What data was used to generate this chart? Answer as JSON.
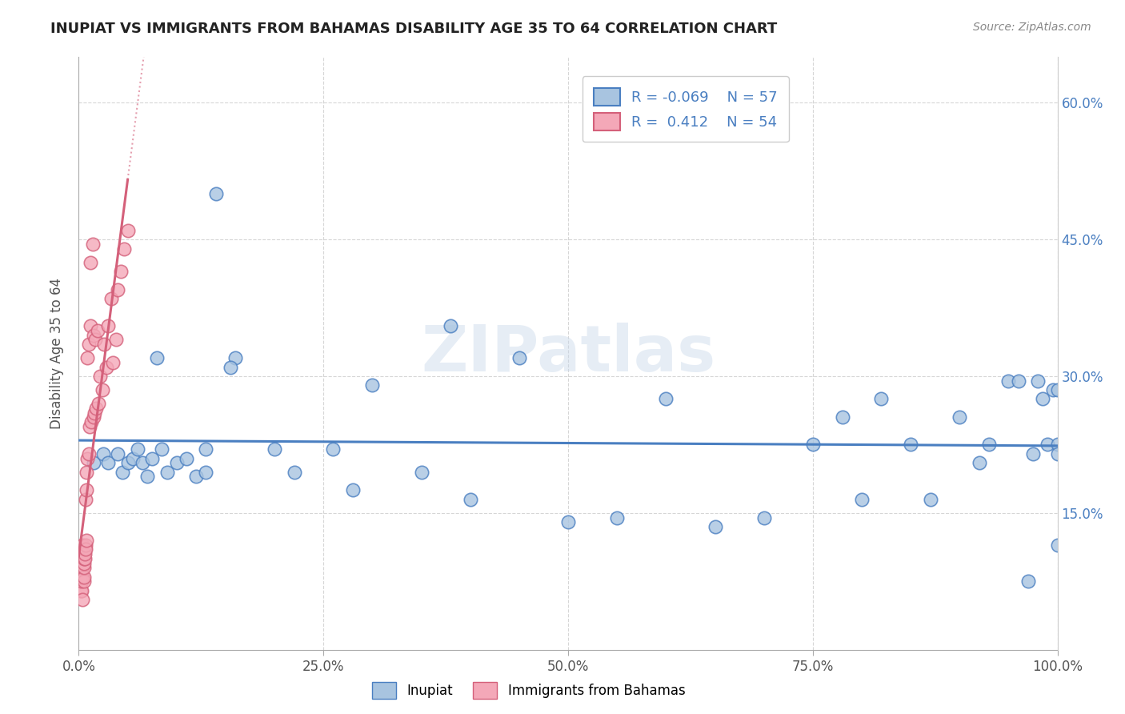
{
  "title": "INUPIAT VS IMMIGRANTS FROM BAHAMAS DISABILITY AGE 35 TO 64 CORRELATION CHART",
  "source": "Source: ZipAtlas.com",
  "ylabel": "Disability Age 35 to 64",
  "watermark": "ZIPatlas",
  "r_inupiat": -0.069,
  "n_inupiat": 57,
  "r_bahamas": 0.412,
  "n_bahamas": 54,
  "xlim": [
    0.0,
    1.0
  ],
  "ylim": [
    0.0,
    0.65
  ],
  "xticks": [
    0.0,
    0.25,
    0.5,
    0.75,
    1.0
  ],
  "xtick_labels": [
    "0.0%",
    "25.0%",
    "50.0%",
    "75.0%",
    "100.0%"
  ],
  "yticks": [
    0.15,
    0.3,
    0.45,
    0.6
  ],
  "ytick_labels": [
    "15.0%",
    "30.0%",
    "45.0%",
    "60.0%"
  ],
  "color_inupiat": "#a8c4e0",
  "color_bahamas": "#f4a8b8",
  "line_color_inupiat": "#4a7fc1",
  "line_color_bahamas": "#d4607a",
  "background_color": "#ffffff",
  "inupiat_x": [
    0.015,
    0.025,
    0.03,
    0.04,
    0.045,
    0.05,
    0.055,
    0.06,
    0.065,
    0.07,
    0.075,
    0.08,
    0.085,
    0.09,
    0.1,
    0.11,
    0.12,
    0.13,
    0.14,
    0.13,
    0.16,
    0.155,
    0.2,
    0.22,
    0.26,
    0.28,
    0.3,
    0.35,
    0.38,
    0.4,
    0.45,
    0.5,
    0.55,
    0.6,
    0.65,
    0.7,
    0.75,
    0.78,
    0.8,
    0.82,
    0.85,
    0.87,
    0.9,
    0.92,
    0.93,
    0.95,
    0.96,
    0.97,
    0.975,
    0.98,
    0.985,
    0.99,
    0.995,
    1.0,
    1.0,
    1.0,
    1.0
  ],
  "inupiat_y": [
    0.205,
    0.215,
    0.205,
    0.215,
    0.195,
    0.205,
    0.21,
    0.22,
    0.205,
    0.19,
    0.21,
    0.32,
    0.22,
    0.195,
    0.205,
    0.21,
    0.19,
    0.195,
    0.5,
    0.22,
    0.32,
    0.31,
    0.22,
    0.195,
    0.22,
    0.175,
    0.29,
    0.195,
    0.355,
    0.165,
    0.32,
    0.14,
    0.145,
    0.275,
    0.135,
    0.145,
    0.225,
    0.255,
    0.165,
    0.275,
    0.225,
    0.165,
    0.255,
    0.205,
    0.225,
    0.295,
    0.295,
    0.075,
    0.215,
    0.295,
    0.275,
    0.225,
    0.285,
    0.225,
    0.285,
    0.215,
    0.115
  ],
  "bahamas_x": [
    0.002,
    0.002,
    0.003,
    0.003,
    0.003,
    0.003,
    0.003,
    0.004,
    0.004,
    0.004,
    0.004,
    0.005,
    0.005,
    0.005,
    0.005,
    0.005,
    0.005,
    0.006,
    0.006,
    0.006,
    0.007,
    0.007,
    0.007,
    0.008,
    0.008,
    0.008,
    0.009,
    0.009,
    0.01,
    0.01,
    0.011,
    0.012,
    0.012,
    0.013,
    0.014,
    0.015,
    0.015,
    0.016,
    0.017,
    0.018,
    0.019,
    0.02,
    0.022,
    0.024,
    0.026,
    0.028,
    0.03,
    0.033,
    0.035,
    0.038,
    0.04,
    0.043,
    0.046,
    0.05
  ],
  "bahamas_y": [
    0.065,
    0.075,
    0.065,
    0.075,
    0.08,
    0.09,
    0.1,
    0.08,
    0.09,
    0.055,
    0.115,
    0.075,
    0.08,
    0.09,
    0.095,
    0.105,
    0.1,
    0.1,
    0.11,
    0.105,
    0.115,
    0.165,
    0.11,
    0.12,
    0.175,
    0.195,
    0.21,
    0.32,
    0.215,
    0.335,
    0.245,
    0.355,
    0.425,
    0.25,
    0.445,
    0.255,
    0.345,
    0.26,
    0.34,
    0.265,
    0.35,
    0.27,
    0.3,
    0.285,
    0.335,
    0.31,
    0.355,
    0.385,
    0.315,
    0.34,
    0.395,
    0.415,
    0.44,
    0.46
  ]
}
